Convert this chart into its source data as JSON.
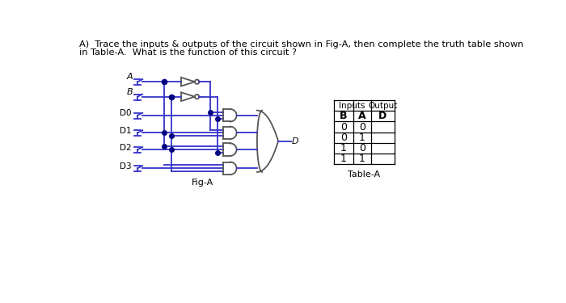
{
  "title_line1": "A)  Trace the inputs & outputs of the circuit shown in Fig-A, then complete the truth table shown",
  "title_line2": "in Table-A.  What is the function of this circuit ?",
  "fig_label": "Fig-A",
  "table_label": "Table-A",
  "circuit_color": "#3333cc",
  "gate_color": "#555555",
  "dot_color": "#000080",
  "text_color": "#000000",
  "table_inputs_header": "Inputs",
  "table_output_header": "Output",
  "table_col_B": "B",
  "table_col_A": "A",
  "table_col_D": "D",
  "table_rows": [
    [
      "0",
      "0",
      ""
    ],
    [
      "0",
      "1",
      ""
    ],
    [
      "1",
      "0",
      ""
    ],
    [
      "1",
      "1",
      ""
    ]
  ],
  "output_label": "D"
}
